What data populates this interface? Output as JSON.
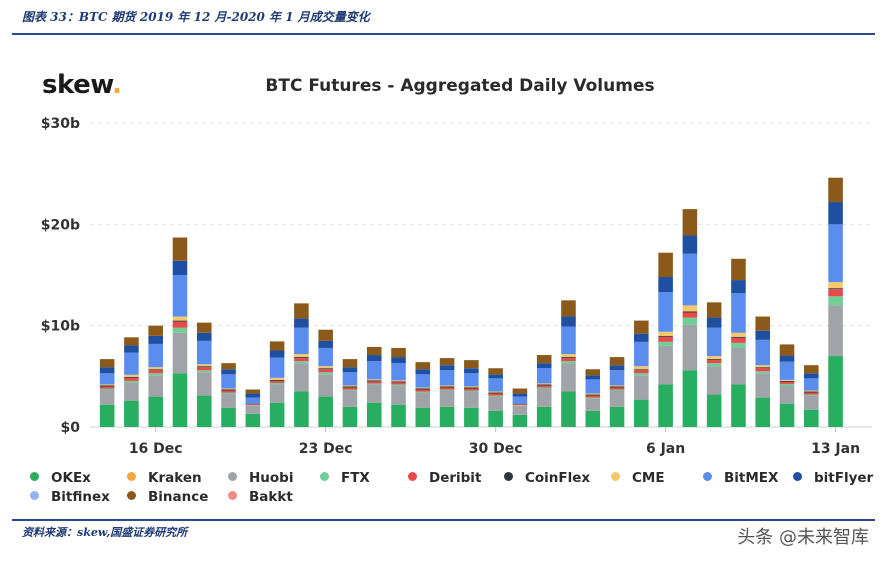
{
  "caption": "图表 33：BTC 期货 2019 年 12 月-2020 年 1 月成交量变化",
  "source": "资料来源：skew,国盛证券研究所",
  "watermark": "头条 @未来智库",
  "logo": {
    "text": "skew",
    "dot": "."
  },
  "chart_data": {
    "type": "bar",
    "stacked": true,
    "title": "BTC Futures - Aggregated Daily Volumes",
    "xlabel": "",
    "ylabel": "",
    "ylim": [
      0,
      30
    ],
    "yticks": [
      0,
      10,
      20,
      30
    ],
    "ytick_labels": [
      "$0",
      "$10b",
      "$20b",
      "$30b"
    ],
    "grid": true,
    "legend_position": "bottom",
    "categories": [
      "14 Dec",
      "15 Dec",
      "16 Dec",
      "17 Dec",
      "18 Dec",
      "19 Dec",
      "20 Dec",
      "21 Dec",
      "22 Dec",
      "23 Dec",
      "24 Dec",
      "25 Dec",
      "26 Dec",
      "27 Dec",
      "28 Dec",
      "29 Dec",
      "30 Dec",
      "31 Dec",
      "1 Jan",
      "2 Jan",
      "3 Jan",
      "4 Jan",
      "5 Jan",
      "6 Jan",
      "7 Jan",
      "8 Jan",
      "9 Jan",
      "10 Jan",
      "11 Jan",
      "12 Jan",
      "13 Jan",
      "14 Jan"
    ],
    "x_tick_labels": [
      "16 Dec",
      "23 Dec",
      "30 Dec",
      "6 Jan",
      "13 Jan"
    ],
    "x_tick_categories": [
      "16 Dec",
      "23 Dec",
      "30 Dec",
      "6 Jan",
      "13 Jan"
    ],
    "series": [
      {
        "name": "OKEx",
        "color": "#27ae60",
        "values": [
          2.2,
          2.6,
          3.0,
          5.3,
          3.1,
          1.9,
          1.3,
          2.4,
          3.5,
          3.0,
          2.0,
          2.4,
          2.2,
          1.9,
          2.0,
          1.9,
          1.6,
          1.2,
          2.0,
          3.5,
          1.6,
          2.0,
          2.7,
          4.2,
          5.6,
          3.2,
          4.2,
          2.9,
          2.3,
          1.7,
          7.0,
          0
        ]
      },
      {
        "name": "Kraken",
        "color": "#f2a93b",
        "values": [
          0,
          0,
          0,
          0,
          0,
          0,
          0,
          0,
          0,
          0,
          0,
          0,
          0,
          0,
          0,
          0,
          0,
          0,
          0,
          0,
          0,
          0,
          0,
          0,
          0,
          0,
          0,
          0,
          0,
          0,
          0,
          0
        ]
      },
      {
        "name": "Huobi",
        "color": "#a0a3a8",
        "values": [
          1.5,
          1.8,
          2.1,
          4.0,
          2.3,
          1.4,
          0.8,
          1.8,
          2.8,
          2.2,
          1.6,
          1.8,
          1.9,
          1.5,
          1.6,
          1.6,
          1.4,
          0.9,
          1.8,
          2.8,
          1.2,
          1.6,
          2.4,
          3.8,
          4.5,
          2.8,
          3.6,
          2.4,
          1.8,
          1.4,
          5.0,
          0
        ]
      },
      {
        "name": "FTX",
        "color": "#6fcf97",
        "values": [
          0.1,
          0.15,
          0.2,
          0.5,
          0.2,
          0.1,
          0.05,
          0.15,
          0.2,
          0.2,
          0.1,
          0.1,
          0.1,
          0.1,
          0.1,
          0.1,
          0.1,
          0.05,
          0.1,
          0.2,
          0.1,
          0.1,
          0.2,
          0.4,
          0.7,
          0.3,
          0.5,
          0.2,
          0.15,
          0.1,
          0.9,
          0
        ]
      },
      {
        "name": "Deribit",
        "color": "#e84a4a",
        "values": [
          0.2,
          0.3,
          0.3,
          0.6,
          0.3,
          0.2,
          0.1,
          0.2,
          0.3,
          0.3,
          0.2,
          0.2,
          0.2,
          0.2,
          0.2,
          0.2,
          0.2,
          0.1,
          0.2,
          0.3,
          0.2,
          0.2,
          0.3,
          0.5,
          0.5,
          0.3,
          0.5,
          0.3,
          0.2,
          0.2,
          0.7,
          0
        ]
      },
      {
        "name": "CoinFlex",
        "color": "#2f3640",
        "values": [
          0.1,
          0.1,
          0.1,
          0.1,
          0.1,
          0.1,
          0.05,
          0.1,
          0.1,
          0.1,
          0.1,
          0.1,
          0.1,
          0.1,
          0.1,
          0.1,
          0.1,
          0.05,
          0.1,
          0.1,
          0.1,
          0.1,
          0.1,
          0.1,
          0.1,
          0.1,
          0.1,
          0.1,
          0.1,
          0.1,
          0.1,
          0
        ]
      },
      {
        "name": "CME",
        "color": "#f5c96b",
        "values": [
          0.1,
          0.2,
          0.2,
          0.4,
          0.2,
          0.1,
          0,
          0.2,
          0.3,
          0.2,
          0.1,
          0.1,
          0.1,
          0.1,
          0.1,
          0.1,
          0.1,
          0,
          0.1,
          0.3,
          0.1,
          0.1,
          0.3,
          0.4,
          0.6,
          0.3,
          0.4,
          0.2,
          0.1,
          0.1,
          0.6,
          0
        ]
      },
      {
        "name": "BitMEX",
        "color": "#5b8def",
        "values": [
          1.1,
          2.2,
          2.3,
          4.1,
          2.3,
          1.4,
          0.6,
          2.0,
          2.6,
          1.8,
          1.3,
          1.8,
          1.7,
          1.3,
          1.5,
          1.3,
          1.3,
          0.7,
          1.5,
          2.7,
          1.4,
          1.5,
          2.4,
          3.9,
          5.1,
          2.8,
          3.9,
          2.5,
          1.8,
          1.2,
          5.7,
          0
        ]
      },
      {
        "name": "bitFlyer",
        "color": "#1e4fa0",
        "values": [
          0.6,
          0.7,
          0.8,
          1.4,
          0.8,
          0.5,
          0.4,
          0.7,
          0.9,
          0.7,
          0.5,
          0.6,
          0.6,
          0.5,
          0.5,
          0.5,
          0.4,
          0.3,
          0.5,
          1.0,
          0.4,
          0.5,
          0.8,
          1.5,
          1.8,
          1.0,
          1.3,
          0.9,
          0.6,
          0.5,
          2.2,
          0
        ]
      },
      {
        "name": "Bitfinex",
        "color": "#8fb4ef",
        "values": [
          0,
          0,
          0,
          0,
          0,
          0,
          0,
          0,
          0,
          0,
          0,
          0,
          0,
          0,
          0,
          0,
          0,
          0,
          0,
          0,
          0,
          0,
          0,
          0,
          0,
          0,
          0,
          0,
          0,
          0,
          0,
          0
        ]
      },
      {
        "name": "Binance",
        "color": "#8b5a1b",
        "values": [
          0.8,
          0.8,
          1.0,
          2.3,
          1.0,
          0.6,
          0.4,
          0.9,
          1.5,
          1.1,
          0.8,
          0.8,
          0.9,
          0.7,
          0.7,
          0.8,
          0.6,
          0.5,
          0.8,
          1.6,
          0.6,
          0.8,
          1.3,
          2.4,
          2.6,
          1.5,
          2.1,
          1.4,
          1.1,
          0.8,
          2.4,
          0
        ]
      },
      {
        "name": "Bakkt",
        "color": "#f28b82",
        "values": [
          0,
          0,
          0,
          0,
          0,
          0,
          0,
          0,
          0,
          0,
          0,
          0,
          0,
          0,
          0,
          0,
          0,
          0,
          0,
          0,
          0,
          0,
          0,
          0,
          0,
          0,
          0,
          0,
          0,
          0,
          0,
          0
        ]
      }
    ]
  }
}
